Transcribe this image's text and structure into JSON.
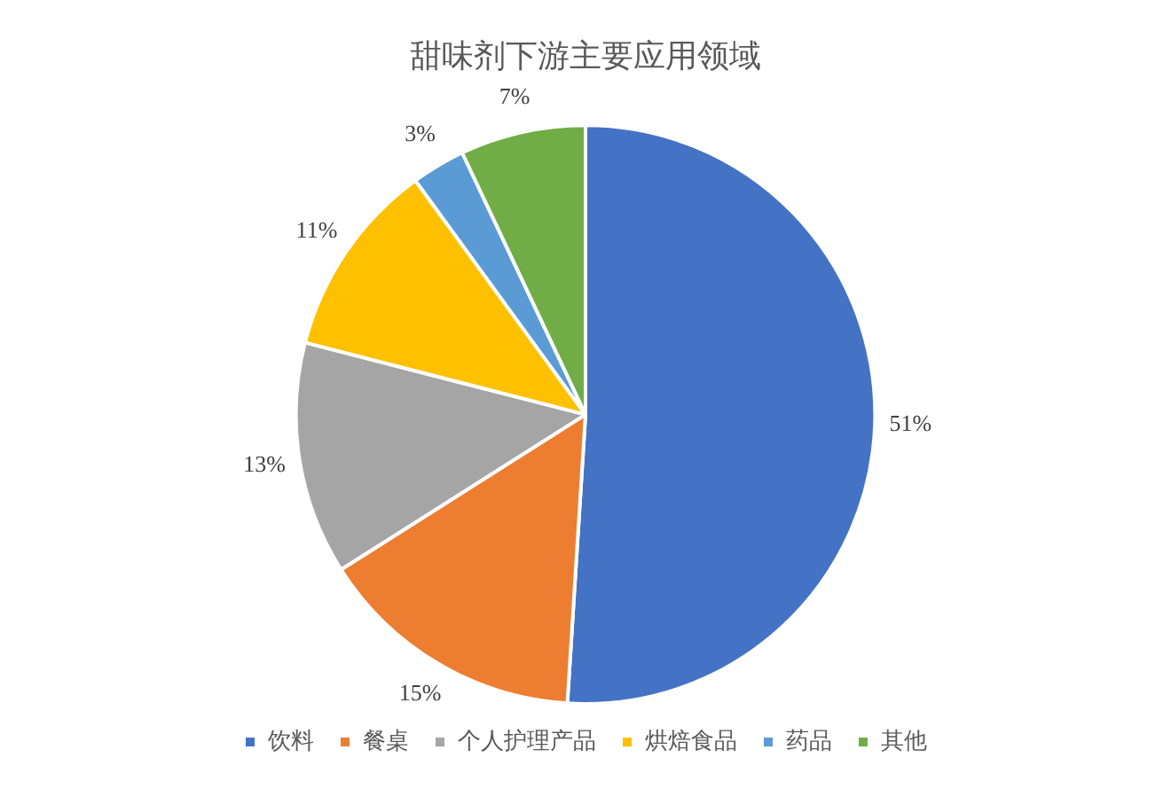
{
  "chart_data": {
    "type": "pie",
    "title": "甜味剂下游主要应用领域",
    "categories": [
      "饮料",
      "餐桌",
      "个人护理产品",
      "烘焙食品",
      "药品",
      "其他"
    ],
    "values": [
      51,
      15,
      13,
      11,
      3,
      7
    ],
    "colors": [
      "#4472c4",
      "#ed7d31",
      "#a5a5a5",
      "#ffc000",
      "#5b9bd5",
      "#70ad47"
    ],
    "value_labels": [
      "51%",
      "15%",
      "13%",
      "11%",
      "3%",
      "7%"
    ],
    "legend": "bottom"
  }
}
